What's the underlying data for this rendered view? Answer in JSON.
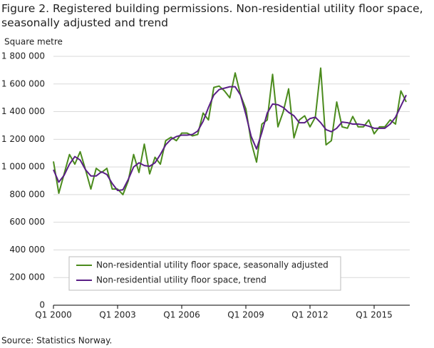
{
  "chart_data": {
    "type": "line",
    "title": "Figure 2. Registered building permissions. Non-residential utility floor space, seasonally adjusted and trend",
    "y_label": "Square metre",
    "source": "Source: Statistics Norway.",
    "categories": [
      "Q1 2000",
      null,
      null,
      null,
      null,
      null,
      null,
      null,
      null,
      null,
      null,
      null,
      "Q1 2003",
      null,
      null,
      null,
      null,
      null,
      null,
      null,
      null,
      null,
      null,
      null,
      "Q1 2006",
      null,
      null,
      null,
      null,
      null,
      null,
      null,
      null,
      null,
      null,
      null,
      "Q1 2009",
      null,
      null,
      null,
      null,
      null,
      null,
      null,
      null,
      null,
      null,
      null,
      "Q1 2012",
      null,
      null,
      null,
      null,
      null,
      null,
      null,
      null,
      null,
      null,
      null,
      "Q1 2015",
      null,
      null,
      null,
      null,
      null,
      null
    ],
    "series": [
      {
        "name": "Non-residential utility floor space, seasonally adjusted",
        "color": "#4b8b1d",
        "values": [
          1040000,
          810000,
          950000,
          1090000,
          1020000,
          1110000,
          980000,
          840000,
          990000,
          960000,
          990000,
          840000,
          840000,
          800000,
          900000,
          1090000,
          960000,
          1165000,
          950000,
          1070000,
          1020000,
          1190000,
          1215000,
          1190000,
          1245000,
          1245000,
          1225000,
          1235000,
          1390000,
          1340000,
          1575000,
          1585000,
          1550000,
          1500000,
          1680000,
          1520000,
          1420000,
          1180000,
          1035000,
          1310000,
          1340000,
          1670000,
          1290000,
          1400000,
          1565000,
          1210000,
          1340000,
          1370000,
          1290000,
          1360000,
          1715000,
          1160000,
          1190000,
          1470000,
          1290000,
          1280000,
          1365000,
          1290000,
          1290000,
          1340000,
          1240000,
          1290000,
          1290000,
          1340000,
          1310000,
          1550000,
          1470000
        ]
      },
      {
        "name": "Non-residential utility floor space, trend",
        "color": "#5a1e86",
        "values": [
          980000,
          890000,
          940000,
          1020000,
          1075000,
          1050000,
          980000,
          935000,
          935000,
          965000,
          945000,
          880000,
          830000,
          835000,
          910000,
          1000000,
          1030000,
          1010000,
          1005000,
          1030000,
          1090000,
          1160000,
          1200000,
          1220000,
          1230000,
          1230000,
          1235000,
          1260000,
          1330000,
          1430000,
          1520000,
          1560000,
          1570000,
          1580000,
          1580000,
          1520000,
          1380000,
          1220000,
          1130000,
          1250000,
          1390000,
          1455000,
          1450000,
          1430000,
          1395000,
          1370000,
          1320000,
          1320000,
          1350000,
          1360000,
          1320000,
          1270000,
          1255000,
          1280000,
          1325000,
          1320000,
          1310000,
          1310000,
          1305000,
          1295000,
          1280000,
          1280000,
          1280000,
          1310000,
          1360000,
          1440000,
          1520000
        ]
      }
    ],
    "ylim": [
      0,
      1800000
    ],
    "yticks": [
      0,
      {
        "value": 200000,
        "label": "200 000"
      },
      {
        "value": 400000,
        "label": "400 000"
      },
      {
        "value": 600000,
        "label": "600 000"
      },
      {
        "value": 800000,
        "label": "800 000"
      },
      {
        "value": 1000000,
        "label": "1 000 000"
      },
      {
        "value": 1200000,
        "label": "1 200 000"
      },
      {
        "value": 1400000,
        "label": "1 400 000"
      },
      {
        "value": 1600000,
        "label": "1 600 000"
      },
      {
        "value": 1800000,
        "label": "1 800 000"
      }
    ],
    "grid": true,
    "legend": "lower left"
  }
}
